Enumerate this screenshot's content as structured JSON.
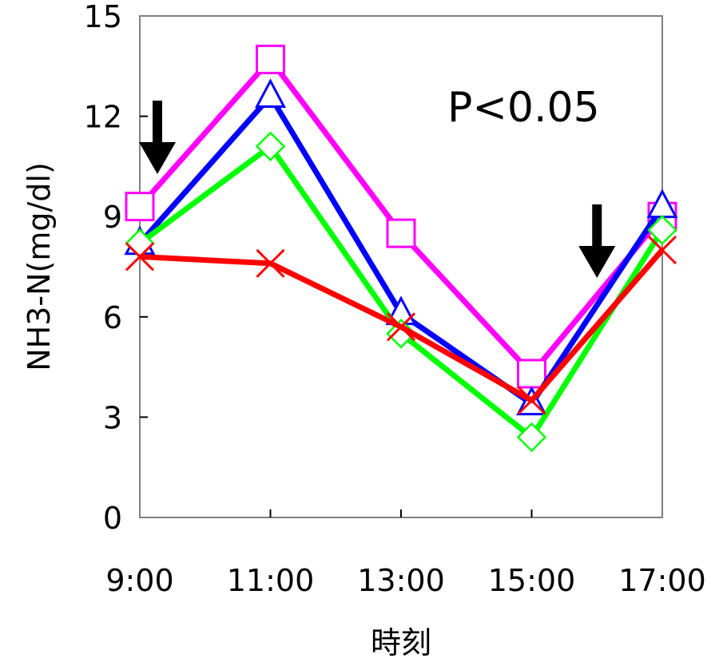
{
  "chart_data": {
    "type": "line",
    "xlabel": "時刻",
    "ylabel": "NH3-N(mg/dl)",
    "categories": [
      "9:00",
      "11:00",
      "13:00",
      "15:00",
      "17:00"
    ],
    "ylim": [
      0,
      15
    ],
    "yticks": [
      0,
      3,
      6,
      9,
      12,
      15
    ],
    "grid": false,
    "annotation": "P<0.05",
    "arrows_at": [
      "9:00",
      "16:00"
    ],
    "series": [
      {
        "color": "#ff00ff",
        "marker": "square",
        "values": [
          9.3,
          13.7,
          8.5,
          4.3,
          9.0
        ]
      },
      {
        "color": "#0000ff",
        "marker": "triangle",
        "values": [
          8.2,
          12.6,
          6.1,
          3.4,
          9.3
        ]
      },
      {
        "color": "#00ff00",
        "marker": "diamond",
        "values": [
          8.2,
          11.1,
          5.5,
          2.4,
          8.6
        ]
      },
      {
        "color": "#ff0000",
        "marker": "cross",
        "values": [
          7.8,
          7.6,
          5.7,
          3.5,
          8.0
        ]
      }
    ]
  }
}
